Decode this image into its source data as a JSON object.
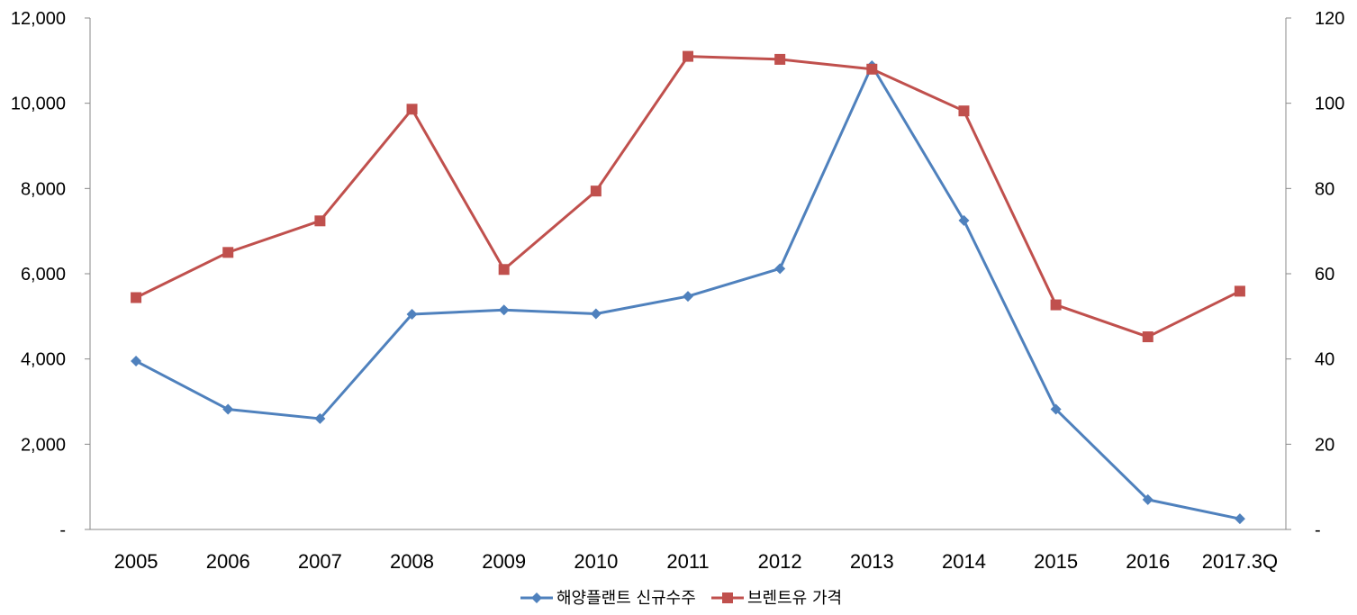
{
  "chart_data": {
    "type": "line",
    "title": "",
    "xlabel": "",
    "ylabel": "",
    "categories": [
      "2005",
      "2006",
      "2007",
      "2008",
      "2009",
      "2010",
      "2011",
      "2012",
      "2013",
      "2014",
      "2015",
      "2016",
      "2017.3Q"
    ],
    "y_left": {
      "range": [
        0,
        12000
      ],
      "ticks": [
        "-",
        "2,000",
        "4,000",
        "6,000",
        "8,000",
        "10,000",
        "12,000"
      ]
    },
    "y_right": {
      "range": [
        0,
        120
      ],
      "ticks": [
        "-",
        "20",
        "40",
        "60",
        "80",
        "100",
        "120"
      ]
    },
    "series": [
      {
        "name": "해양플랜트 신규수주",
        "axis": "left",
        "marker": "diamond",
        "color": "#4F81BD",
        "values": [
          3950,
          2820,
          2600,
          5050,
          5150,
          5060,
          5470,
          6120,
          10880,
          7250,
          2820,
          700,
          250
        ]
      },
      {
        "name": "브렌트유 가격",
        "axis": "right",
        "marker": "square",
        "color": "#C0504D",
        "values": [
          54.4,
          65.0,
          72.4,
          98.6,
          61.0,
          79.4,
          111.0,
          110.3,
          108.0,
          98.2,
          52.7,
          45.2,
          55.9
        ]
      }
    ],
    "grid": false,
    "legend": "bottom"
  }
}
